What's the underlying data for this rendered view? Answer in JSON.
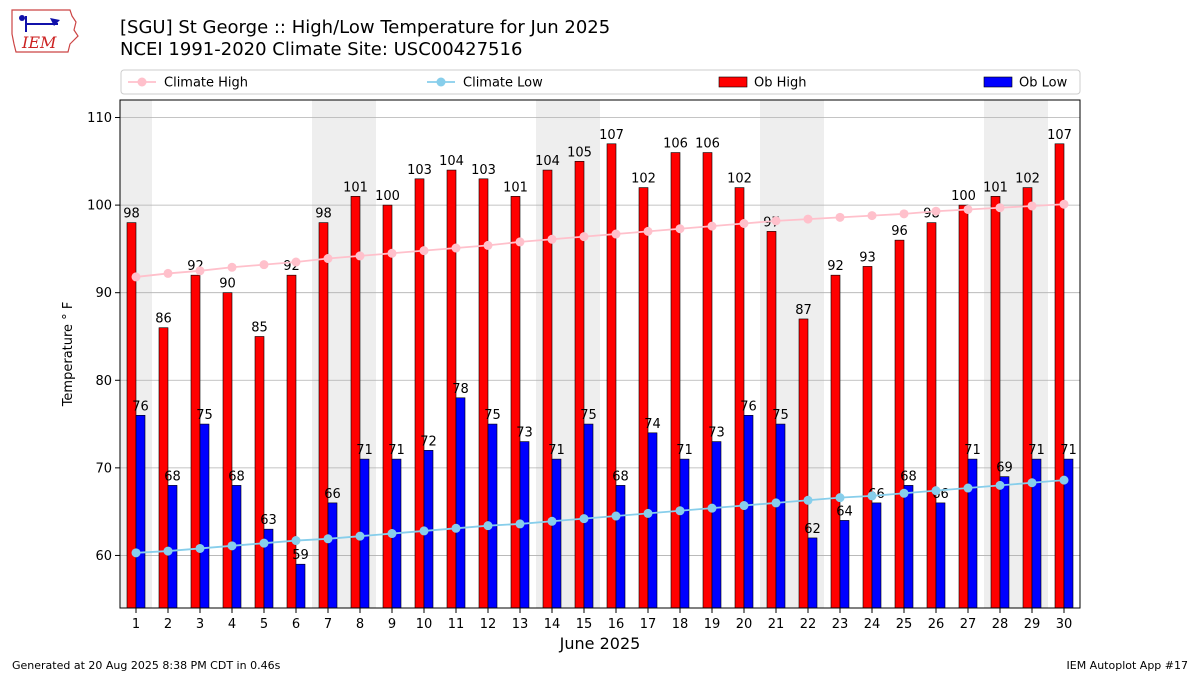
{
  "logo": {
    "text": "IEM"
  },
  "header": {
    "title": "[SGU] St George :: High/Low Temperature for Jun 2025",
    "subtitle": "NCEI 1991-2020 Climate Site: USC00427516"
  },
  "footer": {
    "left": "Generated at 20 Aug 2025 8:38 PM CDT in 0.46s",
    "right": "IEM Autoplot App #17"
  },
  "colors": {
    "ob_high": "#ff0000",
    "ob_low": "#0000ff",
    "climate_high": "#ffc0cb",
    "climate_low": "#87ceeb",
    "weekend_band": "#eeeeee",
    "grid": "#b0b0b0"
  },
  "chart_data": {
    "type": "bar",
    "xlabel": "June 2025",
    "ylabel": "Temperature ° F",
    "ylim": [
      54,
      112
    ],
    "yticks": [
      60,
      70,
      80,
      90,
      100,
      110
    ],
    "grid": "horizontal",
    "legend_placement": "top",
    "categories": [
      1,
      2,
      3,
      4,
      5,
      6,
      7,
      8,
      9,
      10,
      11,
      12,
      13,
      14,
      15,
      16,
      17,
      18,
      19,
      20,
      21,
      22,
      23,
      24,
      25,
      26,
      27,
      28,
      29,
      30
    ],
    "shaded_days": [
      1,
      7,
      8,
      14,
      15,
      21,
      22,
      28,
      29
    ],
    "series": [
      {
        "name": "Climate High",
        "kind": "line",
        "values": [
          91.8,
          92.2,
          92.5,
          92.9,
          93.2,
          93.5,
          93.9,
          94.2,
          94.5,
          94.8,
          95.1,
          95.4,
          95.8,
          96.1,
          96.4,
          96.7,
          97.0,
          97.3,
          97.6,
          97.9,
          98.2,
          98.4,
          98.6,
          98.8,
          99.0,
          99.3,
          99.5,
          99.7,
          99.9,
          100.1
        ]
      },
      {
        "name": "Climate Low",
        "kind": "line",
        "values": [
          60.3,
          60.5,
          60.8,
          61.1,
          61.4,
          61.7,
          61.9,
          62.2,
          62.5,
          62.8,
          63.1,
          63.4,
          63.6,
          63.9,
          64.2,
          64.5,
          64.8,
          65.1,
          65.4,
          65.7,
          66.0,
          66.3,
          66.6,
          66.8,
          67.1,
          67.4,
          67.7,
          68.0,
          68.3,
          68.6
        ]
      },
      {
        "name": "Ob High",
        "kind": "bar",
        "values": [
          98,
          86,
          92,
          90,
          85,
          92,
          98,
          101,
          100,
          103,
          104,
          103,
          101,
          104,
          105,
          107,
          102,
          106,
          106,
          102,
          97,
          87,
          92,
          93,
          96,
          98,
          100,
          101,
          102,
          107
        ]
      },
      {
        "name": "Ob Low",
        "kind": "bar",
        "values": [
          76,
          68,
          75,
          68,
          63,
          59,
          66,
          71,
          71,
          72,
          78,
          75,
          73,
          71,
          75,
          68,
          74,
          71,
          73,
          76,
          75,
          62,
          64,
          66,
          68,
          66,
          71,
          69,
          71,
          71
        ]
      }
    ]
  }
}
